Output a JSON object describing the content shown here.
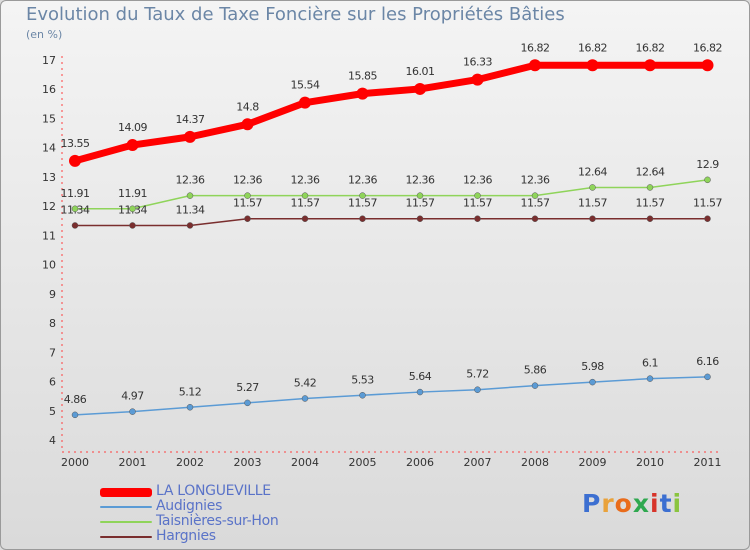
{
  "title": "Evolution du Taux de Taxe Foncière sur les Propriétés Bâties",
  "unit_label": "(en %)",
  "logo": {
    "letters": [
      "P",
      "r",
      "o",
      "x",
      "i",
      "t",
      "i"
    ],
    "colors": [
      "#3c6fd1",
      "#e9a23b",
      "#e96c1b",
      "#2fa84f",
      "#d7342a",
      "#3c6fd1",
      "#8ac43f"
    ]
  },
  "colors": {
    "background": "#dcdcdc",
    "axis": "#333333",
    "label": "#333333"
  },
  "chart_data": {
    "type": "line",
    "title": "Evolution du Taux de Taxe Foncière sur les Propriétés Bâties",
    "ylabel": "(en %)",
    "xlabel": "",
    "x": [
      "2000",
      "2001",
      "2002",
      "2003",
      "2004",
      "2005",
      "2006",
      "2007",
      "2008",
      "2009",
      "2010",
      "2011"
    ],
    "ylim": [
      4,
      17
    ],
    "yticks": [
      "4",
      "5",
      "6",
      "7",
      "8",
      "9",
      "10",
      "11",
      "12",
      "13",
      "14",
      "15",
      "16",
      "17"
    ],
    "series": [
      {
        "name": "LA LONGUEVILLE",
        "color": "#ff0000",
        "values": [
          13.55,
          14.09,
          14.37,
          14.8,
          15.54,
          15.85,
          16.01,
          16.33,
          16.82,
          16.82,
          16.82,
          16.82
        ],
        "labels": [
          "13.55",
          "14.09",
          "14.37",
          "14.8",
          "15.54",
          "15.85",
          "16.01",
          "16.33",
          "16.82",
          "16.82",
          "16.82",
          "16.82"
        ]
      },
      {
        "name": "Audignies",
        "color": "#5b9bd5",
        "values": [
          4.86,
          4.97,
          5.12,
          5.27,
          5.42,
          5.53,
          5.64,
          5.72,
          5.86,
          5.98,
          6.1,
          6.16
        ],
        "labels": [
          "4.86",
          "4.97",
          "5.12",
          "5.27",
          "5.42",
          "5.53",
          "5.64",
          "5.72",
          "5.86",
          "5.98",
          "6.1",
          "6.16"
        ]
      },
      {
        "name": "Taisnières-sur-Hon",
        "color": "#8fd45a",
        "values": [
          11.91,
          11.91,
          12.36,
          12.36,
          12.36,
          12.36,
          12.36,
          12.36,
          12.36,
          12.64,
          12.64,
          12.9
        ],
        "labels": [
          "11.91",
          "11.91",
          "12.36",
          "12.36",
          "12.36",
          "12.36",
          "12.36",
          "12.36",
          "12.36",
          "12.64",
          "12.64",
          "12.9"
        ]
      },
      {
        "name": "Hargnies",
        "color": "#7a2e2e",
        "values": [
          11.34,
          11.34,
          11.34,
          11.57,
          11.57,
          11.57,
          11.57,
          11.57,
          11.57,
          11.57,
          11.57,
          11.57
        ],
        "labels": [
          "11.34",
          "11.34",
          "11.34",
          "11.57",
          "11.57",
          "11.57",
          "11.57",
          "11.57",
          "11.57",
          "11.57",
          "11.57",
          "11.57"
        ]
      }
    ],
    "legend": [
      "LA LONGUEVILLE",
      "Audignies",
      "Taisnières-sur-Hon",
      "Hargnies"
    ],
    "grid": false,
    "legend_position": "bottom-left"
  }
}
